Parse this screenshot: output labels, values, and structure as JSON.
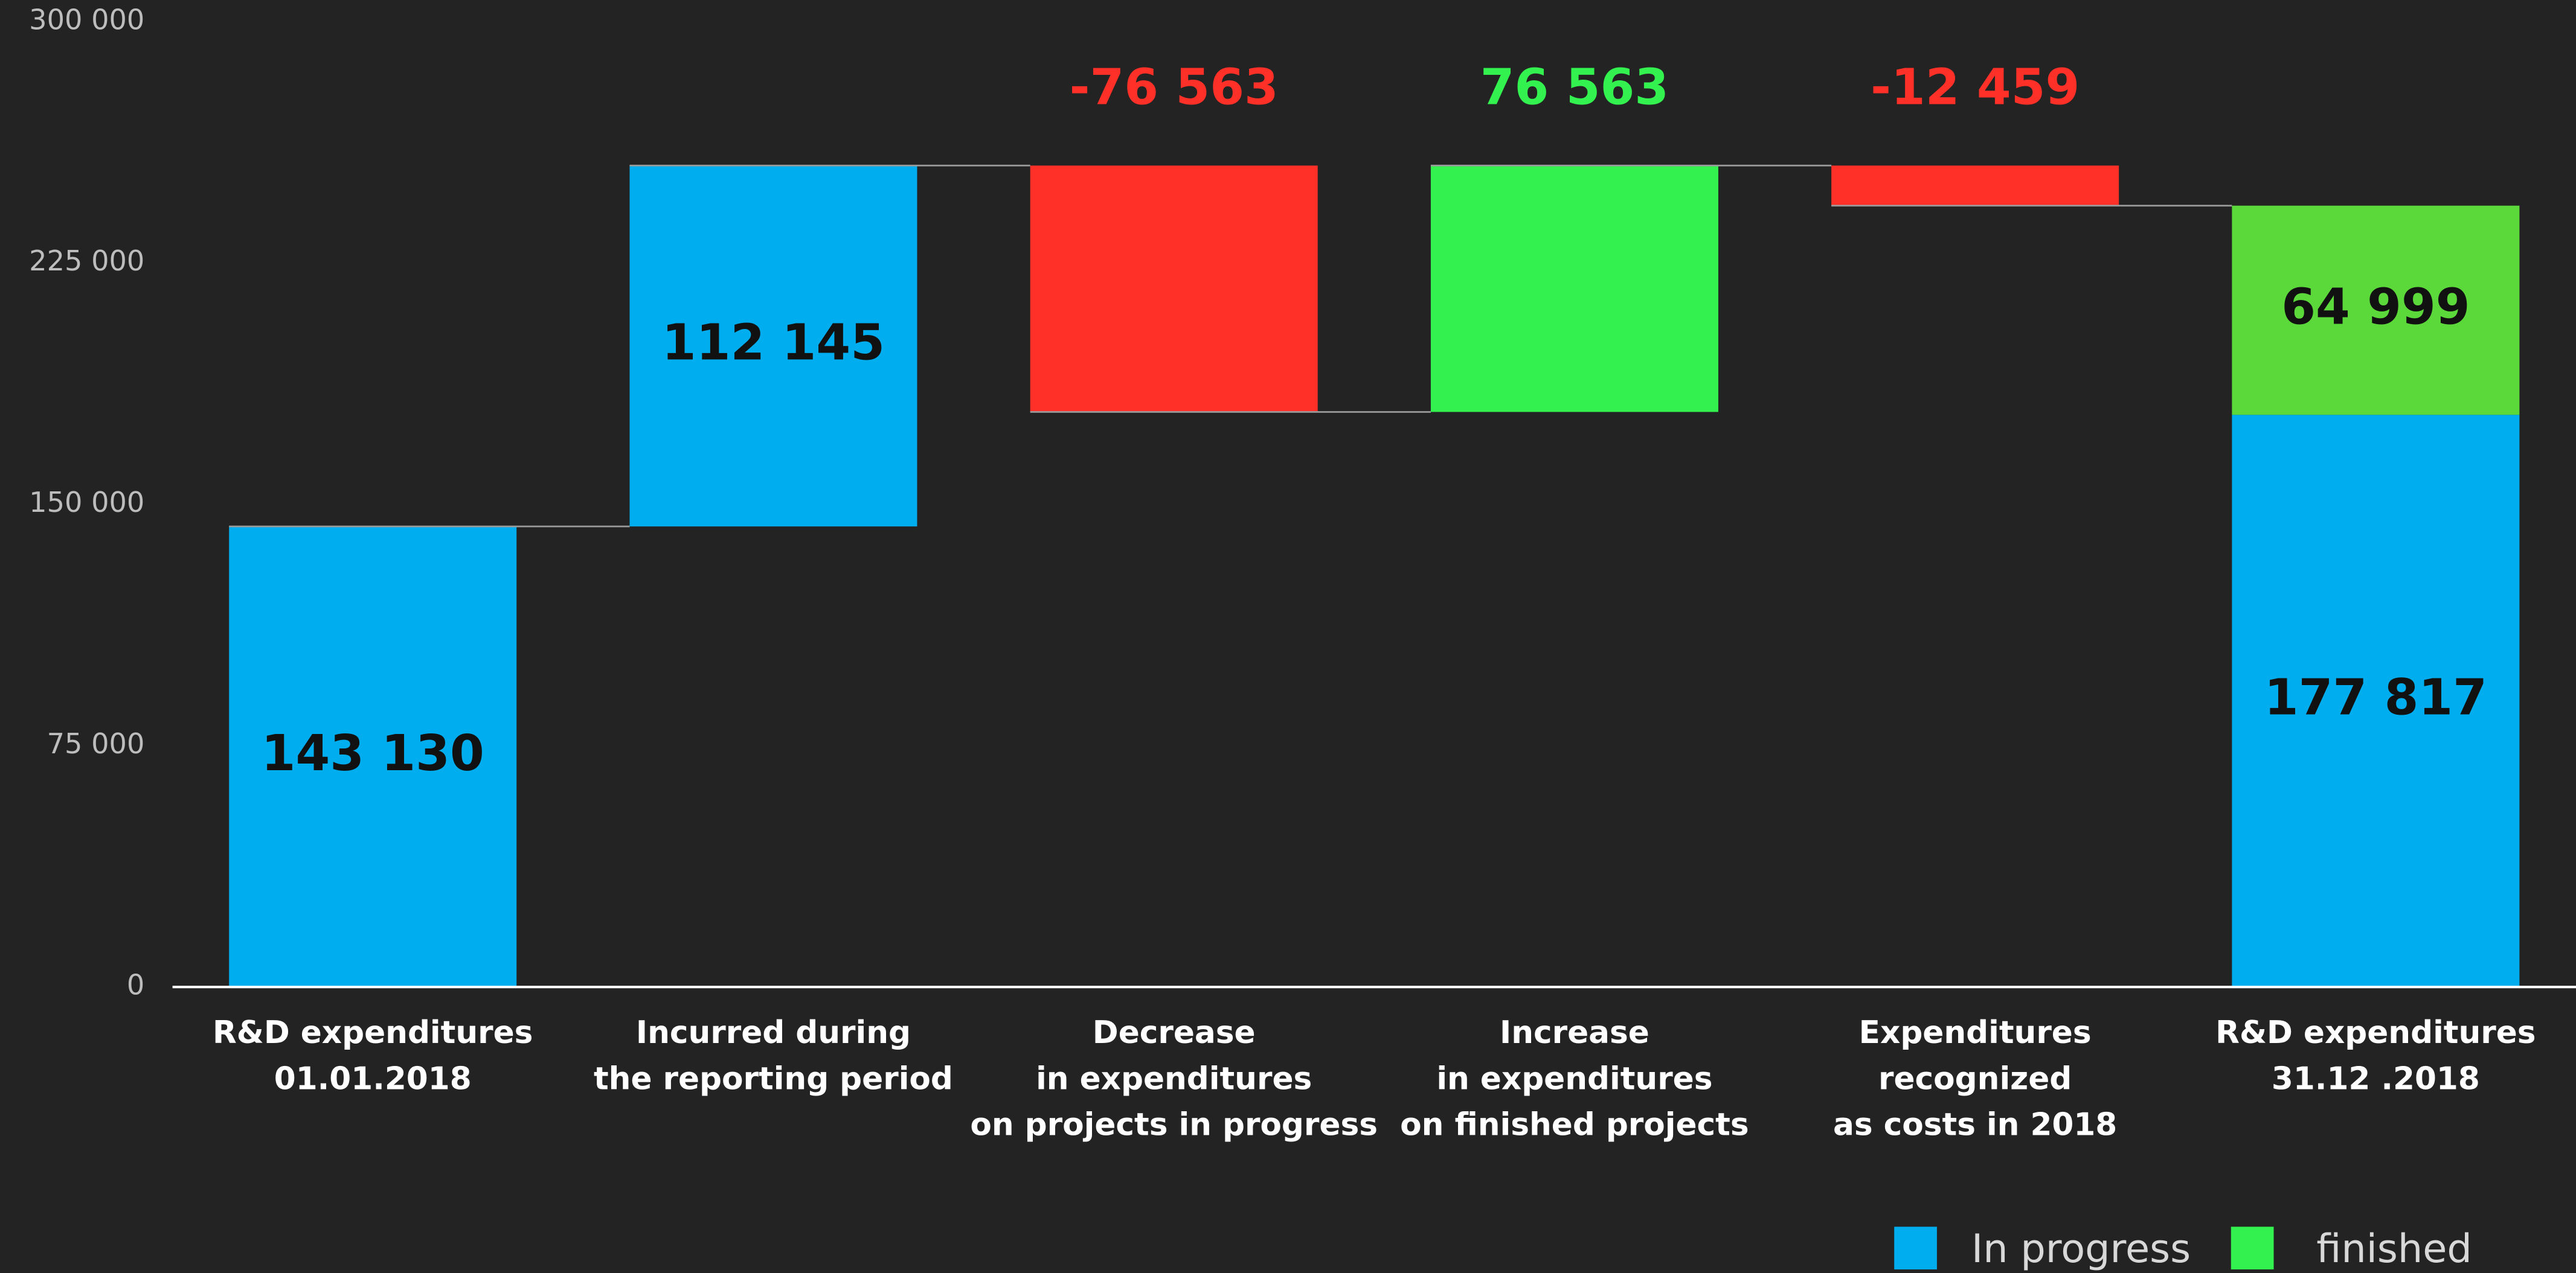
{
  "chart_data": {
    "type": "waterfall",
    "categories": [
      [
        "R&D expenditures",
        "01.01.2018"
      ],
      [
        "Incurred during",
        "the reporting period"
      ],
      [
        "Decrease",
        "in expenditures",
        "on projects in progress"
      ],
      [
        "Increase",
        "in expenditures",
        "on finished projects"
      ],
      [
        "Expenditures",
        "recognized",
        "as costs in 2018"
      ],
      [
        "R&D expenditures",
        "31.12 .2018"
      ]
    ],
    "steps": {
      "values": [
        143130,
        112145,
        -76563,
        76563,
        -12459
      ],
      "value_labels": [
        "143 130",
        "112 145",
        "-76 563",
        "76 563",
        "-12 459"
      ],
      "colors": [
        "#00aeef",
        "#00aeef",
        "#ff3028",
        "#33f24f",
        "#ff3028"
      ],
      "label_position": [
        "inside",
        "inside",
        "above",
        "above",
        "above"
      ]
    },
    "total": {
      "values": [
        177817,
        64999
      ],
      "value_labels": [
        "177 817",
        "64 999"
      ],
      "colors": [
        "#00aeef",
        "#5cd93a"
      ]
    },
    "series": [
      {
        "name": "In progress",
        "color": "#00aeef"
      },
      {
        "name": "finished",
        "color": "#33f24f"
      }
    ],
    "ylim": [
      0,
      300000
    ],
    "yticks": [
      0,
      {
        "value": 75000,
        "label": "75 000"
      },
      {
        "value": 150000,
        "label": "150 000"
      },
      {
        "value": 225000,
        "label": "225 000"
      },
      {
        "value": 300000,
        "label": "300 000"
      }
    ],
    "grid": false
  }
}
